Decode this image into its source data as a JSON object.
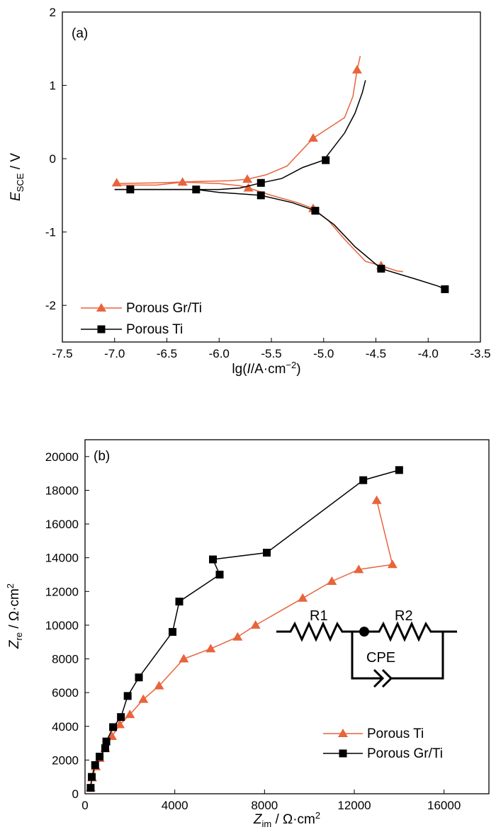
{
  "colors": {
    "orange": "#e8643c",
    "black": "#000000"
  },
  "chart_data": [
    {
      "type": "line",
      "panel_label": "(a)",
      "xlabel": "lg(I/A·cm⁻²)",
      "ylabel": "E_SCE / V",
      "xlim": [
        -7.5,
        -3.5
      ],
      "ylim": [
        -2.5,
        2
      ],
      "xticks": [
        -7.5,
        -7.0,
        -6.5,
        -6.0,
        -5.5,
        -5.0,
        -4.5,
        -4.0,
        -3.5
      ],
      "xtick_labels": [
        "-7.5",
        "-7.0",
        "-6.5",
        "-6.0",
        "-5.5",
        "-5.0",
        "-4.5",
        "-4.0",
        "-3.5"
      ],
      "yticks": [
        -2,
        -1,
        0,
        1,
        2
      ],
      "ytick_labels": [
        "-2",
        "-1",
        "0",
        "1",
        "2"
      ],
      "legend": "bottom-left",
      "series": [
        {
          "name": "Porous Gr/Ti",
          "color": "#e8643c",
          "marker": "triangle",
          "lines": [
            [
              [
                -7.0,
                -0.34
              ],
              [
                -6.6,
                -0.33
              ],
              [
                -6.2,
                -0.31
              ],
              [
                -5.9,
                -0.3
              ],
              [
                -5.73,
                -0.28
              ],
              [
                -5.55,
                -0.22
              ],
              [
                -5.35,
                -0.1
              ],
              [
                -5.1,
                0.28
              ],
              [
                -4.95,
                0.42
              ],
              [
                -4.8,
                0.56
              ],
              [
                -4.72,
                0.85
              ],
              [
                -4.68,
                1.21
              ],
              [
                -4.65,
                1.4
              ]
            ],
            [
              [
                -7.0,
                -0.36
              ],
              [
                -6.6,
                -0.36
              ],
              [
                -6.34,
                -0.32
              ],
              [
                -6.0,
                -0.34
              ],
              [
                -5.8,
                -0.37
              ],
              [
                -5.72,
                -0.4
              ],
              [
                -5.5,
                -0.5
              ],
              [
                -5.25,
                -0.6
              ],
              [
                -5.1,
                -0.68
              ],
              [
                -4.95,
                -0.85
              ],
              [
                -4.8,
                -1.1
              ],
              [
                -4.6,
                -1.4
              ],
              [
                -4.45,
                -1.46
              ],
              [
                -4.3,
                -1.53
              ],
              [
                -4.24,
                -1.54
              ]
            ]
          ],
          "markers": [
            [
              -6.98,
              -0.33
            ],
            [
              -6.35,
              -0.32
            ],
            [
              -5.73,
              -0.28
            ],
            [
              -5.1,
              0.28
            ],
            [
              -4.68,
              1.21
            ],
            [
              -5.72,
              -0.4
            ],
            [
              -5.1,
              -0.68
            ],
            [
              -4.45,
              -1.46
            ]
          ]
        },
        {
          "name": "Porous Ti",
          "color": "#000000",
          "marker": "square",
          "lines": [
            [
              [
                -7.0,
                -0.42
              ],
              [
                -6.5,
                -0.42
              ],
              [
                -6.22,
                -0.42
              ],
              [
                -6.0,
                -0.42
              ],
              [
                -5.8,
                -0.4
              ],
              [
                -5.6,
                -0.33
              ],
              [
                -5.4,
                -0.27
              ],
              [
                -5.2,
                -0.12
              ],
              [
                -5.0,
                -0.02
              ],
              [
                -4.8,
                0.35
              ],
              [
                -4.7,
                0.62
              ],
              [
                -4.63,
                0.9
              ],
              [
                -4.6,
                1.07
              ]
            ],
            [
              [
                -7.0,
                -0.42
              ],
              [
                -6.5,
                -0.42
              ],
              [
                -6.22,
                -0.42
              ],
              [
                -6.0,
                -0.46
              ],
              [
                -5.8,
                -0.48
              ],
              [
                -5.6,
                -0.5
              ],
              [
                -5.3,
                -0.6
              ],
              [
                -5.08,
                -0.71
              ],
              [
                -4.9,
                -0.9
              ],
              [
                -4.7,
                -1.2
              ],
              [
                -4.45,
                -1.5
              ],
              [
                -4.1,
                -1.65
              ],
              [
                -3.9,
                -1.74
              ],
              [
                -3.84,
                -1.78
              ]
            ]
          ],
          "markers": [
            [
              -6.85,
              -0.42
            ],
            [
              -6.22,
              -0.42
            ],
            [
              -5.6,
              -0.33
            ],
            [
              -4.98,
              -0.02
            ],
            [
              -5.6,
              -0.5
            ],
            [
              -5.08,
              -0.71
            ],
            [
              -4.45,
              -1.5
            ],
            [
              -3.84,
              -1.78
            ]
          ]
        }
      ]
    },
    {
      "type": "line",
      "panel_label": "(b)",
      "xlabel": "Z_im / Ω·cm²",
      "ylabel": "Z_re / Ω·cm²",
      "xlim": [
        0,
        18000
      ],
      "ylim": [
        0,
        21000
      ],
      "xticks": [
        0,
        4000,
        8000,
        12000,
        16000
      ],
      "xtick_labels": [
        "0",
        "4000",
        "8000",
        "12000",
        "16000"
      ],
      "yticks": [
        0,
        2000,
        4000,
        6000,
        8000,
        10000,
        12000,
        14000,
        16000,
        18000,
        20000
      ],
      "ytick_labels": [
        "0",
        "2000",
        "4000",
        "6000",
        "8000",
        "10000",
        "12000",
        "14000",
        "16000",
        "18000",
        "20000"
      ],
      "legend": "bottom-right",
      "series": [
        {
          "name": "Porous Ti",
          "color": "#e8643c",
          "marker": "triangle",
          "points": [
            [
              250,
              350
            ],
            [
              320,
              950
            ],
            [
              480,
              1600
            ],
            [
              650,
              2100
            ],
            [
              900,
              2700
            ],
            [
              1200,
              3400
            ],
            [
              1550,
              4100
            ],
            [
              2000,
              4700
            ],
            [
              2600,
              5600
            ],
            [
              3300,
              6400
            ],
            [
              4400,
              8000
            ],
            [
              5600,
              8600
            ],
            [
              6800,
              9300
            ],
            [
              7600,
              10000
            ],
            [
              9700,
              11600
            ],
            [
              11000,
              12600
            ],
            [
              12200,
              13300
            ],
            [
              13700,
              13600
            ],
            [
              13000,
              17400
            ]
          ]
        },
        {
          "name": "Porous Gr/Ti",
          "color": "#000000",
          "marker": "square",
          "points": [
            [
              250,
              350
            ],
            [
              300,
              1000
            ],
            [
              450,
              1700
            ],
            [
              650,
              2200
            ],
            [
              900,
              2700
            ],
            [
              950,
              3100
            ],
            [
              1250,
              3950
            ],
            [
              1600,
              4550
            ],
            [
              1900,
              5800
            ],
            [
              2400,
              6900
            ],
            [
              3900,
              9600
            ],
            [
              4200,
              11400
            ],
            [
              6000,
              13000
            ],
            [
              5700,
              13900
            ],
            [
              8100,
              14300
            ],
            [
              12400,
              18600
            ],
            [
              14000,
              19200
            ]
          ]
        }
      ]
    }
  ],
  "circuit": {
    "r1_label": "R1",
    "r2_label": "R2",
    "cpe_label": "CPE"
  }
}
